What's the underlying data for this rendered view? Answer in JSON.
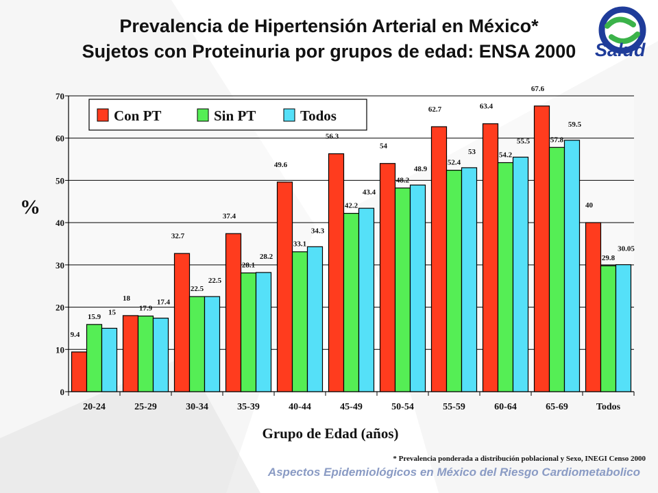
{
  "slide": {
    "title_line1": "Prevalencia de Hipertensión Arterial en México*",
    "title_line2": "Sujetos con Proteinuria por grupos de edad: ENSA 2000",
    "logo_text": "Salud",
    "footnote": "* Prevalencia ponderada a distribución poblacional y Sexo, INEGI Censo 2000",
    "footer": "Aspectos Epidemiológicos en México del Riesgo Cardiometabolico"
  },
  "chart_data": {
    "type": "bar",
    "title": "",
    "xlabel": "Grupo de Edad (años)",
    "ylabel": "%",
    "ylim": [
      0,
      70
    ],
    "yticks": [
      0,
      10,
      20,
      30,
      40,
      50,
      60,
      70
    ],
    "grid": true,
    "legend_position": "top-left",
    "categories": [
      "20-24",
      "25-29",
      "30-34",
      "35-39",
      "40-44",
      "45-49",
      "50-54",
      "55-59",
      "60-64",
      "65-69",
      "Todos"
    ],
    "series": [
      {
        "name": "Con PT",
        "color": "#ff3c1e",
        "values": [
          9.4,
          18,
          32.7,
          37.4,
          49.6,
          56.3,
          54,
          62.7,
          63.4,
          67.6,
          40
        ],
        "labels": [
          "9.4",
          "18",
          "32.7",
          "37.4",
          "49.6",
          "56.3",
          "54",
          "62.7",
          "63.4",
          "67.6",
          "40"
        ]
      },
      {
        "name": "Sin PT",
        "color": "#55ee55",
        "values": [
          15.9,
          17.9,
          22.5,
          28.1,
          33.1,
          42.2,
          48.2,
          52.4,
          54.2,
          57.8,
          29.8
        ],
        "labels": [
          "15.9",
          "17.9",
          "22.5",
          "28.1",
          "33.1",
          "42.2",
          "48.2",
          "52.4",
          "54.2",
          "57.8",
          "29.8"
        ]
      },
      {
        "name": "Todos",
        "color": "#55e0f8",
        "values": [
          15,
          17.4,
          22.5,
          28.2,
          34.3,
          43.4,
          48.9,
          53,
          55.5,
          59.5,
          30.05
        ],
        "labels": [
          "15",
          "17.4",
          "22.5",
          "28.2",
          "34.3",
          "43.4",
          "48.9",
          "53",
          "55.5",
          "59.5",
          "30.05"
        ]
      }
    ]
  }
}
